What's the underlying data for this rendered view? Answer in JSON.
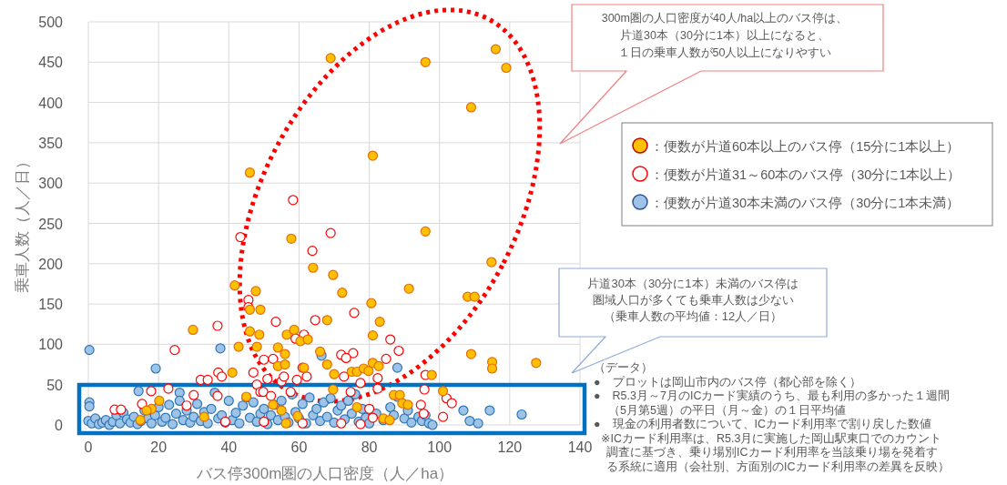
{
  "chart_data": {
    "type": "scatter",
    "xlabel": "バス停300m圏の人口密度（人／ha）",
    "ylabel": "乗車人数（人／日）",
    "xlim": [
      0,
      140
    ],
    "ylim": [
      0,
      500
    ],
    "xticks": [
      0,
      20,
      40,
      60,
      80,
      100,
      120,
      140
    ],
    "yticks": [
      0,
      50,
      100,
      150,
      200,
      250,
      300,
      350,
      400,
      450,
      500
    ],
    "grid": true,
    "legend": "right",
    "marker": "circle",
    "series": [
      {
        "name": "：便数が片道60本以上のバス停（15分に1本以上）",
        "color": "#ffc000",
        "x": [
          69,
          96,
          116,
          119,
          109,
          81,
          46,
          96,
          57.8,
          114.8,
          64,
          69.7,
          72.3,
          80.6,
          83,
          81,
          68,
          66,
          56,
          54,
          56,
          61.4,
          68,
          70,
          75,
          76.5,
          78.4,
          79.8,
          81,
          82.7,
          91.3,
          108,
          110,
          109,
          115,
          115,
          127.5,
          97.8,
          41,
          45,
          101,
          87,
          88.7,
          89.4,
          91,
          84,
          85.8,
          76.5,
          69.7,
          59.6,
          56.3,
          55,
          52.6,
          33,
          20.2,
          18,
          16.6,
          14.8,
          41.7,
          47.7,
          46,
          49,
          29.8,
          46,
          48.7,
          42.8,
          48,
          54,
          56.5,
          58.6,
          60.4,
          62.5
        ],
        "values": [
          455,
          450,
          466,
          443,
          394,
          334,
          313,
          240,
          231,
          202,
          195,
          186,
          164,
          151,
          128,
          111,
          130,
          91,
          88,
          73,
          75,
          71,
          75,
          63,
          66,
          66,
          70,
          67,
          77,
          73,
          169,
          159,
          159,
          88,
          78,
          70,
          77,
          62,
          65,
          35,
          42,
          37,
          37,
          27,
          25,
          8,
          6,
          22,
          44,
          11,
          2,
          18,
          25,
          10,
          30,
          20,
          18,
          6,
          173,
          166,
          143,
          143,
          118,
          116,
          112,
          97,
          97,
          96,
          112,
          118,
          104,
          106
        ]
      },
      {
        "name": "：便数が片道31～60本のバス停（30分に1本以上）",
        "color": "#ff0000",
        "x": [
          58.3,
          43.3,
          69,
          63.8,
          64.6,
          75.7,
          36.8,
          24.6,
          45.6,
          45.6,
          86,
          88.4,
          72,
          75.4,
          59,
          61.4,
          61,
          50,
          52.6,
          37,
          38,
          47,
          51,
          32,
          34,
          72.8,
          84.8,
          82.4,
          96,
          102,
          103.5,
          101,
          95.7,
          82.4,
          17.9,
          22.8,
          30,
          28,
          15.3,
          7.5,
          9.3,
          36.8,
          48,
          49,
          55,
          59.4,
          62.2,
          49.8,
          77.5,
          74.7,
          80,
          81,
          77.5,
          72,
          61,
          50,
          39,
          52,
          57.6,
          95.5,
          94.7,
          53.4,
          73.4,
          55.7
        ],
        "values": [
          279,
          233,
          238,
          216,
          130,
          139,
          123,
          93,
          155,
          146,
          106,
          92,
          87,
          89,
          107,
          112,
          71,
          81,
          82,
          65,
          60,
          65,
          57,
          56,
          56,
          60,
          82,
          58,
          62,
          33,
          27,
          10,
          44,
          45,
          42,
          45,
          37,
          24,
          26,
          19,
          19,
          36,
          50,
          41,
          54,
          56,
          60,
          41,
          52,
          41,
          20,
          9,
          1,
          2,
          2,
          4,
          4,
          36,
          41,
          14,
          25,
          128,
          83,
          60
        ]
      },
      {
        "name": "：便数が片道30本未満のバス停（30分に1本未満）",
        "color": "#9dc3e6",
        "x": [
          0.3,
          19.2,
          37.6,
          66.4,
          88,
          106.8,
          114.3,
          123.4,
          108.6,
          111,
          14.3,
          26,
          0.3,
          0.3,
          0,
          1,
          2,
          3,
          4,
          5,
          6,
          7,
          8,
          9,
          10,
          11,
          12,
          13,
          14,
          15,
          16,
          17,
          18,
          19,
          20,
          21,
          22,
          23,
          24,
          25,
          26,
          27,
          28,
          29,
          30,
          31,
          32,
          33,
          34,
          35,
          36,
          37,
          38,
          39,
          40,
          41,
          42,
          43,
          44,
          45,
          46,
          47,
          48,
          49,
          50,
          51,
          52,
          53,
          54,
          55,
          56,
          57,
          58,
          59,
          60,
          61,
          62,
          63,
          64,
          65,
          66,
          67,
          68,
          69,
          70,
          71,
          72,
          73,
          74,
          75,
          76,
          77,
          78,
          79,
          80,
          82,
          84,
          86,
          87,
          88,
          90,
          91,
          92,
          94,
          95,
          96,
          97,
          98
        ],
        "values": [
          93,
          70,
          95,
          86,
          71,
          18,
          18,
          13,
          5,
          2,
          42,
          40,
          28,
          23,
          5,
          2,
          8,
          1,
          3,
          6,
          0,
          4,
          12,
          2,
          15,
          7,
          3,
          10,
          1,
          5,
          18,
          8,
          2,
          12,
          22,
          4,
          9,
          25,
          1,
          14,
          30,
          6,
          18,
          3,
          10,
          26,
          5,
          16,
          2,
          20,
          40,
          8,
          12,
          3,
          30,
          6,
          15,
          2,
          24,
          34,
          9,
          28,
          4,
          14,
          20,
          1,
          12,
          25,
          6,
          30,
          10,
          3,
          38,
          16,
          8,
          26,
          2,
          34,
          12,
          20,
          5,
          28,
          10,
          33,
          3,
          18,
          24,
          7,
          30,
          14,
          38,
          4,
          20,
          9,
          2,
          14,
          6,
          22,
          12,
          35,
          8,
          18,
          3,
          10,
          5,
          12,
          2,
          0
        ]
      }
    ],
    "annotations": [
      "300m圏の人口密度が40人/ha以上のバス停は、",
      "片道30本（30分に1本）以上になると、",
      "１日の乗車人数が50人以上になりやすい",
      "片道30本（30分に1本）未満のバス停は",
      "圏域人口が多くても乗車人数は少ない",
      "（乗車人数の平均値：12人／日）",
      "（データ）",
      "●　プロットは岡山市内のバス停（都心部を除く）",
      "●　R5.3月～7月のICカード実績のうち、最も利用の多かった１週間",
      "（5月第5週）の平日（月～金）の１日平均値",
      "●　現金の利用者数について、ICカード利用率で割り戻した数値",
      "※ICカード利用率は、R5.3月に実施した岡山駅東口でのカウント",
      "調査に基づき、乗り場別ICカード利用率を当該乗り場を発着す",
      "る系統に適用（会社別、方面別のICカード利用率の差異を反映）"
    ]
  }
}
